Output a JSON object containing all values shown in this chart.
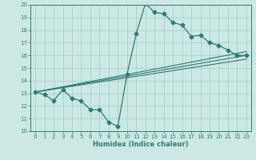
{
  "bg_color": "#cce8e4",
  "grid_color": "#aacfcb",
  "line_color": "#2e7b72",
  "xlabel": "Humidex (Indice chaleur)",
  "xlim": [
    -0.5,
    23.5
  ],
  "ylim": [
    10,
    20
  ],
  "xticks": [
    0,
    1,
    2,
    3,
    4,
    5,
    6,
    7,
    8,
    9,
    10,
    11,
    12,
    13,
    14,
    15,
    16,
    17,
    18,
    19,
    20,
    21,
    22,
    23
  ],
  "yticks": [
    10,
    11,
    12,
    13,
    14,
    15,
    16,
    17,
    18,
    19,
    20
  ],
  "series_main": {
    "x": [
      0,
      1,
      2,
      3,
      4,
      5,
      6,
      7,
      8,
      9,
      10,
      11,
      12,
      13,
      14,
      15,
      16,
      17,
      18,
      19,
      20,
      21,
      22,
      23
    ],
    "y": [
      13.1,
      12.9,
      12.4,
      13.3,
      12.6,
      12.4,
      11.7,
      11.7,
      10.7,
      10.4,
      14.5,
      17.7,
      20.1,
      19.4,
      19.3,
      18.6,
      18.4,
      17.5,
      17.6,
      17.0,
      16.8,
      16.4,
      16.0,
      16.0
    ]
  },
  "series_lines": [
    {
      "x": [
        0,
        23
      ],
      "y": [
        13.1,
        16.0
      ]
    },
    {
      "x": [
        0,
        23
      ],
      "y": [
        13.1,
        15.7
      ]
    },
    {
      "x": [
        0,
        23
      ],
      "y": [
        13.1,
        16.3
      ]
    }
  ],
  "xlabel_fontsize": 6,
  "tick_fontsize": 5
}
